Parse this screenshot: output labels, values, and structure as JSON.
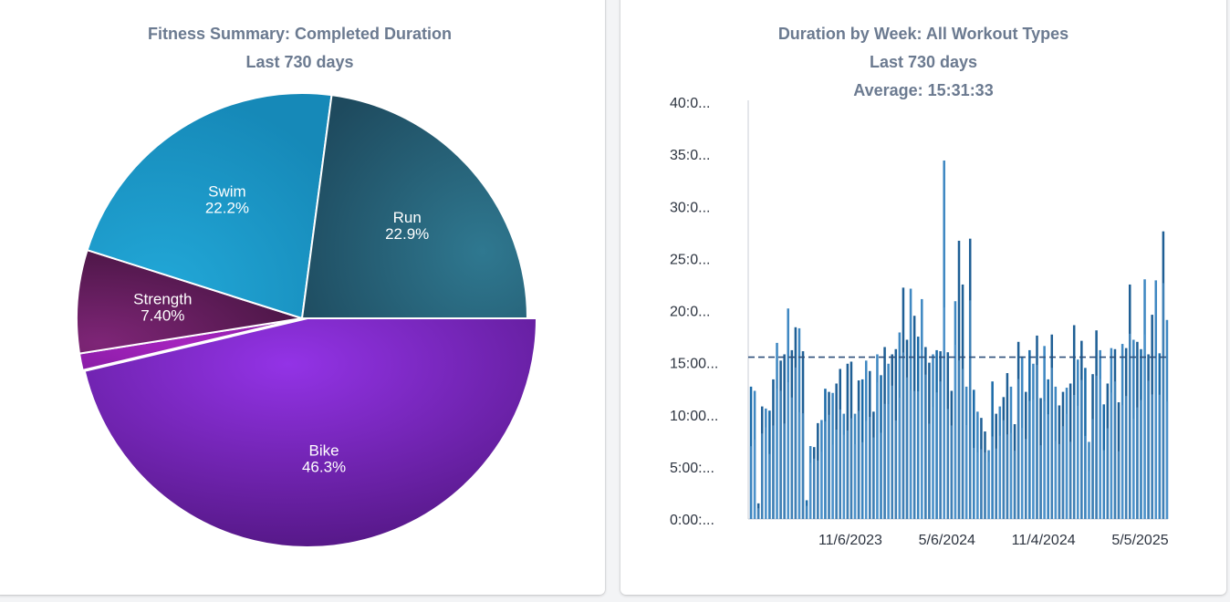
{
  "left_panel": {
    "title_line1": "Fitness Summary: Completed Duration",
    "title_line2": "Last 730 days"
  },
  "right_panel": {
    "title_line1": "Duration by Week: All Workout Types",
    "title_line2": "Last 730 days",
    "title_line3": "Average: 15:31:33"
  },
  "chart_data": [
    {
      "type": "pie",
      "title": "Fitness Summary: Completed Duration",
      "subtitle": "Last 730 days",
      "slices": [
        {
          "name": "Bike",
          "value": 46.3,
          "label": "46.3%",
          "color": "#7a1fc4"
        },
        {
          "name": "",
          "value": 1.2,
          "label": "",
          "color": "#9e1fb8"
        },
        {
          "name": "Strength",
          "value": 7.4,
          "label": "7.40%",
          "color": "#6a1f5e"
        },
        {
          "name": "Swim",
          "value": 22.2,
          "label": "22.2%",
          "color": "#1a97c9"
        },
        {
          "name": "Run",
          "value": 22.9,
          "label": "22.9%",
          "color": "#245b70"
        }
      ],
      "exploded_slice": "Bike"
    },
    {
      "type": "bar",
      "title": "Duration by Week: All Workout Types",
      "subtitle": "Last 730 days",
      "annotation": "Average: 15:31:33",
      "average": 15.53,
      "y_unit": "hours",
      "ylim": [
        0,
        40
      ],
      "y_ticks": [
        {
          "value": 0,
          "label": "0:00:..."
        },
        {
          "value": 5,
          "label": "5:00:..."
        },
        {
          "value": 10,
          "label": "10:00..."
        },
        {
          "value": 15,
          "label": "15:00..."
        },
        {
          "value": 20,
          "label": "20:0..."
        },
        {
          "value": 25,
          "label": "25:0..."
        },
        {
          "value": 30,
          "label": "30:0..."
        },
        {
          "value": 35,
          "label": "35:0..."
        },
        {
          "value": 40,
          "label": "40:0..."
        }
      ],
      "x_ticks": [
        {
          "week_index": 27,
          "label": "11/6/2023"
        },
        {
          "week_index": 53,
          "label": "5/6/2024"
        },
        {
          "week_index": 79,
          "label": "11/4/2024"
        },
        {
          "week_index": 105,
          "label": "5/5/2025"
        }
      ],
      "series_colors": [
        "#1f5f95",
        "#3f88c2",
        "#1a6aa8"
      ],
      "weekly_hours": [
        12.7,
        12.3,
        1.5,
        10.8,
        10.6,
        10.4,
        13.4,
        16.9,
        15.2,
        15.8,
        20.2,
        16.2,
        18.4,
        18.3,
        16.1,
        1.8,
        7.0,
        6.9,
        9.2,
        9.5,
        12.5,
        12.2,
        12.1,
        13.0,
        14.4,
        10.1,
        14.9,
        15.1,
        10.1,
        13.3,
        13.4,
        15.2,
        14.2,
        10.3,
        15.8,
        13.8,
        16.5,
        14.9,
        15.8,
        16.3,
        17.9,
        22.2,
        17.2,
        22.1,
        19.5,
        17.5,
        21.1,
        16.5,
        15.0,
        15.8,
        16.2,
        16.1,
        34.4,
        16.0,
        12.3,
        20.9,
        26.7,
        22.5,
        12.7,
        26.9,
        12.4,
        10.3,
        9.7,
        8.4,
        6.6,
        13.2,
        10.1,
        10.8,
        11.7,
        14.0,
        12.7,
        9.1,
        17.0,
        15.6,
        12.2,
        16.2,
        14.9,
        17.6,
        11.6,
        16.6,
        13.4,
        17.7,
        12.7,
        10.9,
        12.2,
        12.6,
        13.0,
        18.6,
        15.3,
        17.1,
        14.5,
        7.4,
        13.9,
        18.1,
        16.2,
        11.0,
        13.0,
        16.4,
        16.3,
        11.2,
        16.8,
        16.4,
        22.5,
        17.2,
        17.0,
        16.3,
        23.0,
        15.8,
        19.6,
        22.9,
        15.9,
        27.6,
        19.1
      ]
    }
  ]
}
